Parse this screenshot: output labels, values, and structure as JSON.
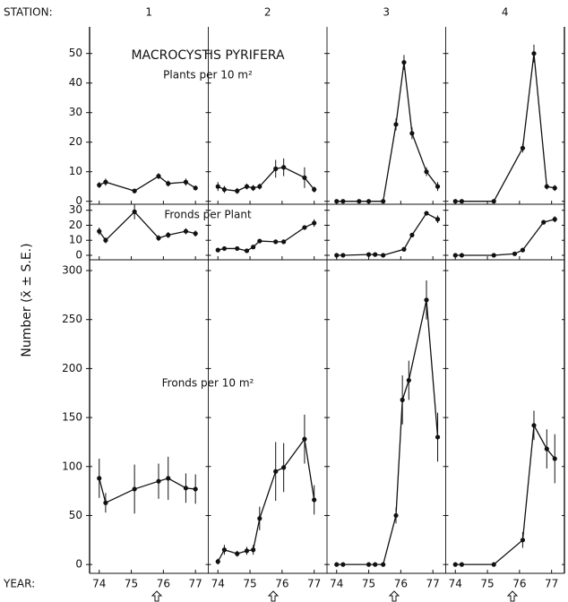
{
  "chart_data": {
    "type": "line",
    "title": "MACROCYSTIS PYRIFERA",
    "ylabel": "Number (x̄ ± S.E.)",
    "station_label": "STATION:",
    "year_label": "YEAR:",
    "stations": [
      "1",
      "2",
      "3",
      "4"
    ],
    "xlim": [
      73.7,
      77.4
    ],
    "xticks": [
      74,
      75,
      76,
      77
    ],
    "color": "#111111",
    "panels": [
      {
        "subtitle": "Plants per 10 m²",
        "ylim": [
          -1,
          59
        ],
        "yticks": [
          0,
          10,
          20,
          30,
          40,
          50
        ],
        "series": [
          {
            "x": [
              74,
              74.2,
              75.1,
              75.85,
              76.15,
              76.7,
              77.0
            ],
            "values": [
              5.5,
              6.5,
              3.5,
              8.5,
              6,
              6.5,
              4.5
            ],
            "errors": [
              1,
              1.2,
              0.8,
              1,
              1,
              1.2,
              0.8
            ]
          },
          {
            "x": [
              74,
              74.2,
              74.6,
              74.9,
              75.1,
              75.3,
              75.8,
              76.05,
              76.7,
              77.0
            ],
            "values": [
              5,
              4,
              3.5,
              5,
              4.5,
              5,
              11,
              11.5,
              8,
              4
            ],
            "errors": [
              1.5,
              1.2,
              1,
              1,
              1,
              1,
              3,
              3,
              3.5,
              1
            ]
          },
          {
            "x": [
              74,
              74.2,
              74.7,
              75,
              75.45,
              75.85,
              76.1,
              76.35,
              76.8,
              77.15
            ],
            "values": [
              0,
              0,
              0,
              0,
              0,
              26,
              47,
              23,
              10,
              5
            ],
            "errors": [
              0,
              0,
              0,
              0,
              0,
              2,
              2.5,
              2,
              1.5,
              1.5
            ]
          },
          {
            "x": [
              74,
              74.2,
              75.2,
              76.1,
              76.45,
              76.85,
              77.1
            ],
            "values": [
              0,
              0,
              0,
              18,
              50,
              5,
              4.5
            ],
            "errors": [
              0,
              0,
              0,
              1.5,
              3,
              1,
              1
            ]
          }
        ]
      },
      {
        "subtitle": "Fronds per Plant",
        "ylim": [
          -3,
          34
        ],
        "yticks": [
          0,
          10,
          20,
          30
        ],
        "series": [
          {
            "x": [
              74,
              74.2,
              75.1,
              75.85,
              76.15,
              76.7,
              77.0
            ],
            "values": [
              16,
              10,
              29,
              11.5,
              13.5,
              16,
              14.5
            ],
            "errors": [
              2.5,
              2,
              5,
              2,
              2,
              2,
              2
            ]
          },
          {
            "x": [
              74,
              74.2,
              74.6,
              74.9,
              75.1,
              75.3,
              75.8,
              76.05,
              76.7,
              77.0
            ],
            "values": [
              3.5,
              4.5,
              4.5,
              3,
              5.5,
              9.5,
              9,
              9,
              18.5,
              21.5
            ],
            "errors": [
              0.5,
              0.5,
              0.5,
              0.5,
              0.8,
              1,
              0.5,
              0.5,
              1.5,
              2.5
            ]
          },
          {
            "x": [
              74,
              74.2,
              75,
              75.2,
              75.45,
              76.1,
              76.35,
              76.8,
              77.15
            ],
            "values": [
              0,
              0,
              0.5,
              0.5,
              0,
              4,
              13.5,
              28,
              24
            ],
            "errors": [
              0,
              0,
              0.3,
              0.3,
              0,
              0.5,
              1,
              1.5,
              2.5
            ]
          },
          {
            "x": [
              74,
              74.2,
              75.2,
              75.85,
              76.1,
              76.75,
              77.1
            ],
            "values": [
              0,
              0,
              0,
              1,
              3.5,
              22,
              24
            ],
            "errors": [
              0,
              0,
              0,
              0.3,
              0.5,
              1.5,
              2
            ]
          }
        ]
      },
      {
        "subtitle": "Fronds per 10 m²",
        "ylim": [
          -9,
          311
        ],
        "yticks": [
          0,
          50,
          100,
          150,
          200,
          250,
          300
        ],
        "series": [
          {
            "x": [
              74,
              74.2,
              75.1,
              75.85,
              76.15,
              76.7,
              77.0
            ],
            "values": [
              88,
              63,
              77,
              85,
              88,
              78,
              77
            ],
            "errors": [
              20,
              10,
              25,
              18,
              22,
              15,
              15
            ]
          },
          {
            "x": [
              74,
              74.2,
              74.6,
              74.9,
              75.1,
              75.3,
              75.8,
              76.05,
              76.7,
              77.0
            ],
            "values": [
              3,
              15,
              11,
              14,
              15,
              47,
              95,
              99,
              128,
              66
            ],
            "errors": [
              3,
              5,
              3,
              4,
              5,
              12,
              30,
              25,
              25,
              15
            ]
          },
          {
            "x": [
              74,
              74.2,
              75,
              75.2,
              75.45,
              75.85,
              76.05,
              76.25,
              76.8,
              77.15
            ],
            "values": [
              0,
              0,
              0,
              0,
              0,
              50,
              168,
              188,
              270,
              130
            ],
            "errors": [
              0,
              0,
              0,
              0,
              0,
              8,
              25,
              20,
              20,
              25
            ]
          },
          {
            "x": [
              74,
              74.2,
              75.2,
              76.1,
              76.45,
              76.85,
              77.1
            ],
            "values": [
              0,
              0,
              0,
              25,
              142,
              118,
              108
            ],
            "errors": [
              0,
              0,
              0,
              8,
              15,
              20,
              25
            ]
          }
        ]
      }
    ]
  }
}
